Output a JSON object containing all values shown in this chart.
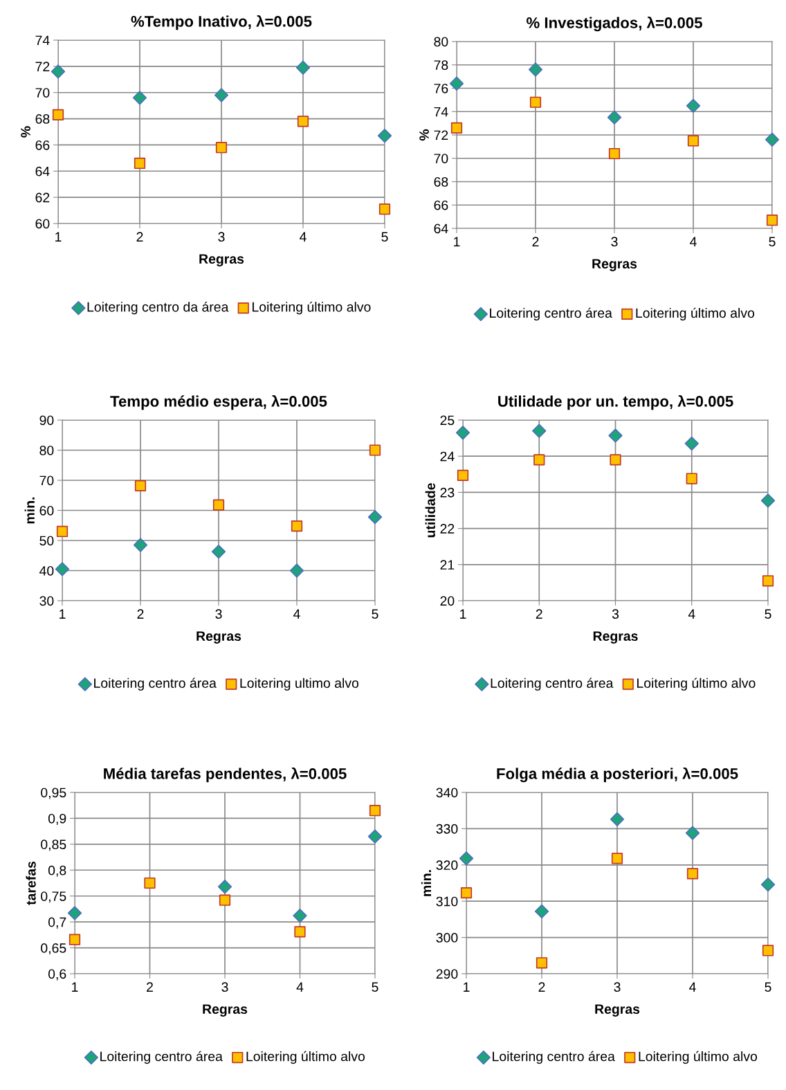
{
  "chart_data": [
    {
      "type": "scatter",
      "title": "%Tempo Inativo, λ=0.005",
      "xlabel": "Regras",
      "ylabel": "%",
      "x": [
        1,
        2,
        3,
        4,
        5
      ],
      "xlim": [
        1,
        5
      ],
      "xticks": [
        1,
        2,
        3,
        4,
        5
      ],
      "ylim": [
        60,
        74
      ],
      "yticks": [
        60,
        62,
        64,
        66,
        68,
        70,
        72,
        74
      ],
      "grid": true,
      "legend": "bottom",
      "series": [
        {
          "name": "Loitering centro da área",
          "color": "#1fa37a",
          "marker": "diamond",
          "values": [
            71.6,
            69.6,
            69.8,
            71.9,
            66.7
          ]
        },
        {
          "name": "Loitering último alvo",
          "color": "#ffc000",
          "marker": "square",
          "values": [
            68.3,
            64.6,
            65.8,
            67.8,
            61.1
          ]
        }
      ]
    },
    {
      "type": "scatter",
      "title": "% Investigados, λ=0.005",
      "xlabel": "Regras",
      "ylabel": "%",
      "x": [
        1,
        2,
        3,
        4,
        5
      ],
      "xlim": [
        1,
        5
      ],
      "xticks": [
        1,
        2,
        3,
        4,
        5
      ],
      "ylim": [
        64,
        80
      ],
      "yticks": [
        64,
        66,
        68,
        70,
        72,
        74,
        76,
        78,
        80
      ],
      "grid": true,
      "legend": "bottom",
      "series": [
        {
          "name": "Loitering centro área",
          "color": "#1fa37a",
          "marker": "diamond",
          "values": [
            76.4,
            77.6,
            73.5,
            74.5,
            71.6
          ]
        },
        {
          "name": "Loitering último alvo",
          "color": "#ffc000",
          "marker": "square",
          "values": [
            72.6,
            74.8,
            70.4,
            71.5,
            64.7
          ]
        }
      ]
    },
    {
      "type": "scatter",
      "title": "Tempo médio espera, λ=0.005",
      "xlabel": "Regras",
      "ylabel": "min.",
      "x": [
        1,
        2,
        3,
        4,
        5
      ],
      "xlim": [
        1,
        5
      ],
      "xticks": [
        1,
        2,
        3,
        4,
        5
      ],
      "ylim": [
        30,
        90
      ],
      "yticks": [
        30,
        40,
        50,
        60,
        70,
        80,
        90
      ],
      "grid": true,
      "legend": "bottom",
      "series": [
        {
          "name": "Loitering centro área",
          "color": "#1fa37a",
          "marker": "diamond",
          "values": [
            40.5,
            48.5,
            46.3,
            40,
            57.8
          ]
        },
        {
          "name": "Loitering ultimo alvo",
          "color": "#ffc000",
          "marker": "square",
          "values": [
            53,
            68.2,
            61.8,
            54.8,
            80
          ]
        }
      ]
    },
    {
      "type": "scatter",
      "title": "Utilidade por un. tempo, λ=0.005",
      "xlabel": "Regras",
      "ylabel": "utilidade",
      "x": [
        1,
        2,
        3,
        4,
        5
      ],
      "xlim": [
        1,
        5
      ],
      "xticks": [
        1,
        2,
        3,
        4,
        5
      ],
      "ylim": [
        20,
        25
      ],
      "yticks": [
        20,
        21,
        22,
        23,
        24,
        25
      ],
      "grid": true,
      "legend": "bottom",
      "series": [
        {
          "name": "Loitering centro área",
          "color": "#1fa37a",
          "marker": "diamond",
          "values": [
            24.65,
            24.7,
            24.57,
            24.35,
            22.77
          ]
        },
        {
          "name": "Loitering último alvo",
          "color": "#ffc000",
          "marker": "square",
          "values": [
            23.47,
            23.9,
            23.9,
            23.38,
            20.55
          ]
        }
      ]
    },
    {
      "type": "scatter",
      "title": "Média tarefas pendentes, λ=0.005",
      "xlabel": "Regras",
      "ylabel": "tarefas",
      "x": [
        1,
        2,
        3,
        4,
        5
      ],
      "xlim": [
        1,
        5
      ],
      "xticks": [
        1,
        2,
        3,
        4,
        5
      ],
      "ylim": [
        0.6,
        0.95
      ],
      "yticks": [
        {
          "value": 0.6,
          "label": "0,6"
        },
        {
          "value": 0.65,
          "label": "0,65"
        },
        {
          "value": 0.7,
          "label": "0,7"
        },
        {
          "value": 0.75,
          "label": "0,75"
        },
        {
          "value": 0.8,
          "label": "0,8"
        },
        {
          "value": 0.85,
          "label": "0,85"
        },
        {
          "value": 0.9,
          "label": "0,9"
        },
        {
          "value": 0.95,
          "label": "0,95"
        }
      ],
      "grid": true,
      "legend": "bottom",
      "series": [
        {
          "name": "Loitering centro área",
          "color": "#1fa37a",
          "marker": "diamond",
          "values": [
            0.717,
            null,
            0.768,
            0.712,
            0.865
          ]
        },
        {
          "name": "Loitering último alvo",
          "color": "#ffc000",
          "marker": "square",
          "values": [
            0.666,
            0.775,
            0.742,
            0.681,
            0.915
          ]
        }
      ]
    },
    {
      "type": "scatter",
      "title": "Folga média a posteriori, λ=0.005",
      "xlabel": "Regras",
      "ylabel": "min.",
      "x": [
        1,
        2,
        3,
        4,
        5
      ],
      "xlim": [
        1,
        5
      ],
      "xticks": [
        1,
        2,
        3,
        4,
        5
      ],
      "ylim": [
        290,
        340
      ],
      "yticks": [
        290,
        300,
        310,
        320,
        330,
        340
      ],
      "grid": true,
      "legend": "bottom",
      "series": [
        {
          "name": "Loitering centro área",
          "color": "#1fa37a",
          "marker": "diamond",
          "values": [
            321.8,
            307.2,
            332.6,
            328.8,
            314.6
          ]
        },
        {
          "name": "Loitering último alvo",
          "color": "#ffc000",
          "marker": "square",
          "values": [
            312.3,
            293,
            321.8,
            317.6,
            296.4
          ]
        }
      ]
    }
  ]
}
